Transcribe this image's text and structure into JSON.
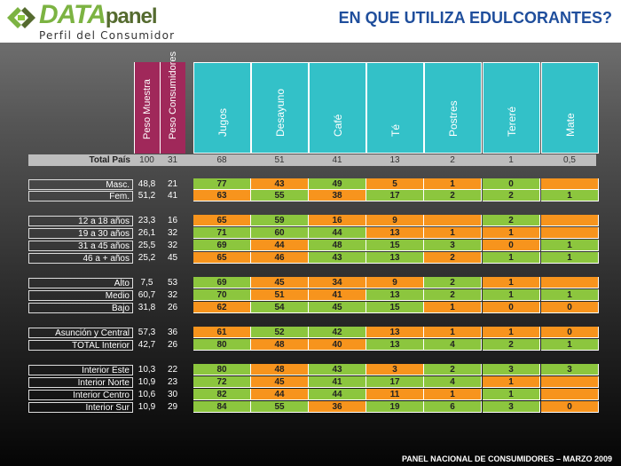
{
  "header": {
    "logo_main": "DATA",
    "logo_panel": "panel",
    "logo_sub": "Perfil del Consumidor",
    "title": "EN QUE UTILIZA EDULCORANTES?"
  },
  "footer": "PANEL NACIONAL DE CONSUMIDORES – MARZO 2009",
  "weight_headers": [
    "Peso Muestra",
    "Peso Consumidores"
  ],
  "columns": [
    "Jugos",
    "Desayuno",
    "Café",
    "Té",
    "Postres",
    "Tereré",
    "Mate"
  ],
  "colors": {
    "green": "#8cc63e",
    "orange": "#f7941d",
    "weight_header": "#a0285a",
    "column_header": "#33c1c8",
    "title": "#1f4e9c"
  },
  "rows": [
    {
      "label": "Total País",
      "muestra": "100",
      "consumidores": "31",
      "cells": [
        [
          "68",
          "t"
        ],
        [
          "51",
          "t"
        ],
        [
          "41",
          "t"
        ],
        [
          "13",
          "t"
        ],
        [
          "2",
          "t"
        ],
        [
          "1",
          "t"
        ],
        [
          "0,5",
          "t"
        ]
      ]
    },
    {
      "label": "Masc.",
      "muestra": "48,8",
      "consumidores": "21",
      "cells": [
        [
          "77",
          "g"
        ],
        [
          "43",
          "o"
        ],
        [
          "49",
          "g"
        ],
        [
          "5",
          "o"
        ],
        [
          "1",
          "o"
        ],
        [
          "0",
          "g"
        ],
        [
          "",
          "o"
        ]
      ]
    },
    {
      "label": "Fem.",
      "muestra": "51,2",
      "consumidores": "41",
      "cells": [
        [
          "63",
          "o"
        ],
        [
          "55",
          "g"
        ],
        [
          "38",
          "o"
        ],
        [
          "17",
          "g"
        ],
        [
          "2",
          "g"
        ],
        [
          "2",
          "g"
        ],
        [
          "1",
          "g"
        ]
      ]
    },
    {
      "label": "12 a 18 años",
      "muestra": "23,3",
      "consumidores": "16",
      "cells": [
        [
          "65",
          "o"
        ],
        [
          "59",
          "g"
        ],
        [
          "16",
          "o"
        ],
        [
          "9",
          "o"
        ],
        [
          "",
          "o"
        ],
        [
          "2",
          "g"
        ],
        [
          "",
          "o"
        ]
      ]
    },
    {
      "label": "19 a 30 años",
      "muestra": "26,1",
      "consumidores": "32",
      "cells": [
        [
          "71",
          "g"
        ],
        [
          "60",
          "g"
        ],
        [
          "44",
          "g"
        ],
        [
          "13",
          "o"
        ],
        [
          "1",
          "o"
        ],
        [
          "1",
          "o"
        ],
        [
          "",
          "o"
        ]
      ]
    },
    {
      "label": "31 a 45 años",
      "muestra": "25,5",
      "consumidores": "32",
      "cells": [
        [
          "69",
          "g"
        ],
        [
          "44",
          "o"
        ],
        [
          "48",
          "g"
        ],
        [
          "15",
          "g"
        ],
        [
          "3",
          "g"
        ],
        [
          "0",
          "o"
        ],
        [
          "1",
          "g"
        ]
      ]
    },
    {
      "label": "46 a + años",
      "muestra": "25,2",
      "consumidores": "45",
      "cells": [
        [
          "65",
          "o"
        ],
        [
          "46",
          "o"
        ],
        [
          "43",
          "g"
        ],
        [
          "13",
          "g"
        ],
        [
          "2",
          "o"
        ],
        [
          "1",
          "g"
        ],
        [
          "1",
          "g"
        ]
      ]
    },
    {
      "label": "Alto",
      "muestra": "7,5",
      "consumidores": "53",
      "cells": [
        [
          "69",
          "g"
        ],
        [
          "45",
          "o"
        ],
        [
          "34",
          "o"
        ],
        [
          "9",
          "o"
        ],
        [
          "2",
          "g"
        ],
        [
          "1",
          "o"
        ],
        [
          "",
          "o"
        ]
      ]
    },
    {
      "label": "Medio",
      "muestra": "60,7",
      "consumidores": "32",
      "cells": [
        [
          "70",
          "g"
        ],
        [
          "51",
          "o"
        ],
        [
          "41",
          "o"
        ],
        [
          "13",
          "g"
        ],
        [
          "2",
          "g"
        ],
        [
          "1",
          "g"
        ],
        [
          "1",
          "g"
        ]
      ]
    },
    {
      "label": "Bajo",
      "muestra": "31,8",
      "consumidores": "26",
      "cells": [
        [
          "62",
          "o"
        ],
        [
          "54",
          "g"
        ],
        [
          "45",
          "g"
        ],
        [
          "15",
          "g"
        ],
        [
          "1",
          "o"
        ],
        [
          "0",
          "o"
        ],
        [
          "0",
          "o"
        ]
      ]
    },
    {
      "label": "Asunción y Central",
      "muestra": "57,3",
      "consumidores": "36",
      "cells": [
        [
          "61",
          "o"
        ],
        [
          "52",
          "g"
        ],
        [
          "42",
          "g"
        ],
        [
          "13",
          "o"
        ],
        [
          "1",
          "o"
        ],
        [
          "1",
          "o"
        ],
        [
          "0",
          "o"
        ]
      ]
    },
    {
      "label": "TOTAL Interior",
      "muestra": "42,7",
      "consumidores": "26",
      "cells": [
        [
          "80",
          "g"
        ],
        [
          "48",
          "o"
        ],
        [
          "40",
          "o"
        ],
        [
          "13",
          "g"
        ],
        [
          "4",
          "g"
        ],
        [
          "2",
          "g"
        ],
        [
          "1",
          "g"
        ]
      ]
    },
    {
      "label": "Interior Este",
      "muestra": "10,3",
      "consumidores": "22",
      "cells": [
        [
          "80",
          "g"
        ],
        [
          "48",
          "o"
        ],
        [
          "43",
          "g"
        ],
        [
          "3",
          "o"
        ],
        [
          "2",
          "g"
        ],
        [
          "3",
          "g"
        ],
        [
          "3",
          "g"
        ]
      ]
    },
    {
      "label": "Interior Norte",
      "muestra": "10,9",
      "consumidores": "23",
      "cells": [
        [
          "72",
          "g"
        ],
        [
          "45",
          "o"
        ],
        [
          "41",
          "g"
        ],
        [
          "17",
          "g"
        ],
        [
          "4",
          "g"
        ],
        [
          "1",
          "o"
        ],
        [
          "",
          "o"
        ]
      ]
    },
    {
      "label": "Interior Centro",
      "muestra": "10,6",
      "consumidores": "30",
      "cells": [
        [
          "82",
          "g"
        ],
        [
          "44",
          "o"
        ],
        [
          "44",
          "g"
        ],
        [
          "11",
          "o"
        ],
        [
          "1",
          "o"
        ],
        [
          "1",
          "g"
        ],
        [
          "",
          "o"
        ]
      ]
    },
    {
      "label": "Interior Sur",
      "muestra": "10,9",
      "consumidores": "29",
      "cells": [
        [
          "84",
          "g"
        ],
        [
          "55",
          "g"
        ],
        [
          "36",
          "o"
        ],
        [
          "19",
          "g"
        ],
        [
          "6",
          "g"
        ],
        [
          "3",
          "g"
        ],
        [
          "0",
          "o"
        ]
      ]
    }
  ]
}
